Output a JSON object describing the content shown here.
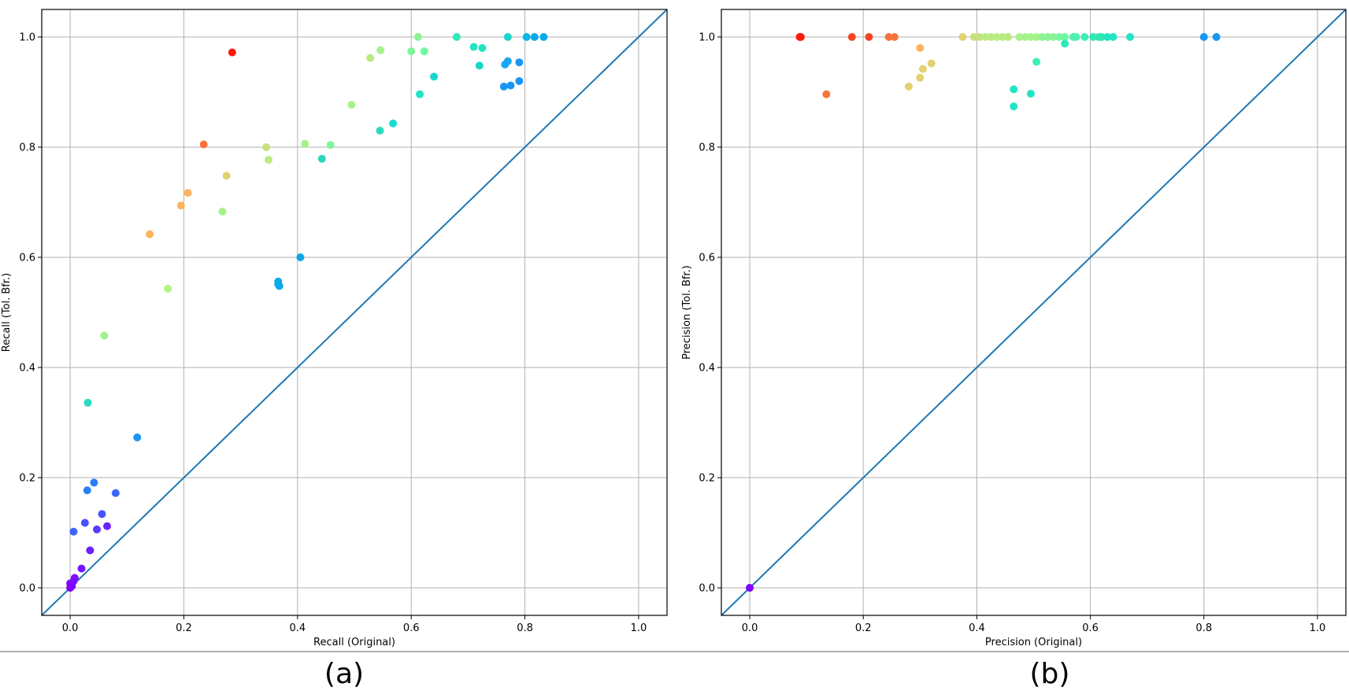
{
  "chart_data": [
    {
      "type": "scatter",
      "panel_label": "(a)",
      "xlabel": "Recall (Original)",
      "ylabel": "Recall (Tol. Bfr.)",
      "xlim": [
        -0.05,
        1.05
      ],
      "ylim": [
        -0.05,
        1.05
      ],
      "xticks": [
        "0.0",
        "0.2",
        "0.4",
        "0.6",
        "0.8",
        "1.0"
      ],
      "yticks": [
        "0.0",
        "0.2",
        "0.4",
        "0.6",
        "0.8",
        "1.0"
      ],
      "grid": true,
      "reference_line": "y = x",
      "line_color": "#1f77b4",
      "colormap": "rainbow",
      "points": [
        {
          "x": 0.0,
          "y": 0.0,
          "c": "#8000ff"
        },
        {
          "x": 0.0,
          "y": 0.008,
          "c": "#8a05ff"
        },
        {
          "x": 0.003,
          "y": 0.003,
          "c": "#8000ff"
        },
        {
          "x": 0.006,
          "y": 0.012,
          "c": "#7a10ff"
        },
        {
          "x": 0.008,
          "y": 0.018,
          "c": "#7a10ff"
        },
        {
          "x": 0.02,
          "y": 0.035,
          "c": "#7316ff"
        },
        {
          "x": 0.035,
          "y": 0.068,
          "c": "#6a22ff"
        },
        {
          "x": 0.065,
          "y": 0.112,
          "c": "#6a22ff"
        },
        {
          "x": 0.047,
          "y": 0.106,
          "c": "#5a3aff"
        },
        {
          "x": 0.026,
          "y": 0.118,
          "c": "#4a52fe"
        },
        {
          "x": 0.056,
          "y": 0.134,
          "c": "#4a52fe"
        },
        {
          "x": 0.006,
          "y": 0.102,
          "c": "#3a66fb"
        },
        {
          "x": 0.03,
          "y": 0.177,
          "c": "#2a7ff7"
        },
        {
          "x": 0.042,
          "y": 0.191,
          "c": "#2a7ff7"
        },
        {
          "x": 0.08,
          "y": 0.172,
          "c": "#3a66fb"
        },
        {
          "x": 0.118,
          "y": 0.273,
          "c": "#1996f2"
        },
        {
          "x": 0.031,
          "y": 0.336,
          "c": "#2adcbe"
        },
        {
          "x": 0.06,
          "y": 0.458,
          "c": "#a0f28c"
        },
        {
          "x": 0.172,
          "y": 0.543,
          "c": "#b0f482"
        },
        {
          "x": 0.14,
          "y": 0.642,
          "c": "#ffb360"
        },
        {
          "x": 0.195,
          "y": 0.694,
          "c": "#ffb360"
        },
        {
          "x": 0.207,
          "y": 0.717,
          "c": "#ffb360"
        },
        {
          "x": 0.235,
          "y": 0.805,
          "c": "#f8733c"
        },
        {
          "x": 0.268,
          "y": 0.683,
          "c": "#a6f28a"
        },
        {
          "x": 0.275,
          "y": 0.748,
          "c": "#e4d070"
        },
        {
          "x": 0.285,
          "y": 0.972,
          "c": "#ff1a0d"
        },
        {
          "x": 0.345,
          "y": 0.8,
          "c": "#c8e07a"
        },
        {
          "x": 0.349,
          "y": 0.777,
          "c": "#b8ec80"
        },
        {
          "x": 0.413,
          "y": 0.806,
          "c": "#a6f28a"
        },
        {
          "x": 0.458,
          "y": 0.804,
          "c": "#7cf69c"
        },
        {
          "x": 0.443,
          "y": 0.779,
          "c": "#2ad8bc"
        },
        {
          "x": 0.405,
          "y": 0.6,
          "c": "#0aa6ea"
        },
        {
          "x": 0.366,
          "y": 0.556,
          "c": "#0aaaea"
        },
        {
          "x": 0.366,
          "y": 0.551,
          "c": "#0aaaea"
        },
        {
          "x": 0.368,
          "y": 0.548,
          "c": "#0aaaea"
        },
        {
          "x": 0.495,
          "y": 0.877,
          "c": "#a6f28a"
        },
        {
          "x": 0.528,
          "y": 0.962,
          "c": "#b8ec80"
        },
        {
          "x": 0.546,
          "y": 0.976,
          "c": "#a6f28a"
        },
        {
          "x": 0.545,
          "y": 0.83,
          "c": "#2adcbe"
        },
        {
          "x": 0.568,
          "y": 0.843,
          "c": "#1adccc"
        },
        {
          "x": 0.6,
          "y": 0.974,
          "c": "#7cf69c"
        },
        {
          "x": 0.612,
          "y": 1.0,
          "c": "#8af494"
        },
        {
          "x": 0.623,
          "y": 0.974,
          "c": "#6ef8a2"
        },
        {
          "x": 0.615,
          "y": 0.896,
          "c": "#20e4c4"
        },
        {
          "x": 0.64,
          "y": 0.928,
          "c": "#1ad4cc"
        },
        {
          "x": 0.68,
          "y": 1.0,
          "c": "#30e8b4"
        },
        {
          "x": 0.71,
          "y": 0.982,
          "c": "#20e4c4"
        },
        {
          "x": 0.725,
          "y": 0.98,
          "c": "#20e4c4"
        },
        {
          "x": 0.72,
          "y": 0.948,
          "c": "#1ad4cc"
        },
        {
          "x": 0.77,
          "y": 1.0,
          "c": "#1ad4cc"
        },
        {
          "x": 0.765,
          "y": 0.95,
          "c": "#1aa6f0"
        },
        {
          "x": 0.77,
          "y": 0.956,
          "c": "#1aa6f0"
        },
        {
          "x": 0.79,
          "y": 0.954,
          "c": "#1996f2"
        },
        {
          "x": 0.763,
          "y": 0.91,
          "c": "#1996f2"
        },
        {
          "x": 0.775,
          "y": 0.912,
          "c": "#1996f2"
        },
        {
          "x": 0.79,
          "y": 0.92,
          "c": "#1996f2"
        },
        {
          "x": 0.803,
          "y": 1.0,
          "c": "#0ab6e6"
        },
        {
          "x": 0.817,
          "y": 1.0,
          "c": "#0aaaea"
        },
        {
          "x": 0.833,
          "y": 1.0,
          "c": "#0aaaea"
        }
      ]
    },
    {
      "type": "scatter",
      "panel_label": "(b)",
      "xlabel": "Precision (Original)",
      "ylabel": "Precision (Tol. Bfr.)",
      "xlim": [
        -0.05,
        1.05
      ],
      "ylim": [
        -0.05,
        1.05
      ],
      "xticks": [
        "0.0",
        "0.2",
        "0.4",
        "0.6",
        "0.8",
        "1.0"
      ],
      "yticks": [
        "0.0",
        "0.2",
        "0.4",
        "0.6",
        "0.8",
        "1.0"
      ],
      "grid": true,
      "reference_line": "y = x",
      "line_color": "#1f77b4",
      "colormap": "rainbow",
      "points": [
        {
          "x": 0.0,
          "y": 0.0,
          "c": "#8000ff"
        },
        {
          "x": 0.088,
          "y": 1.0,
          "c": "#ff1a0d"
        },
        {
          "x": 0.09,
          "y": 1.0,
          "c": "#ff1a0d"
        },
        {
          "x": 0.18,
          "y": 1.0,
          "c": "#f84424"
        },
        {
          "x": 0.21,
          "y": 1.0,
          "c": "#f84424"
        },
        {
          "x": 0.245,
          "y": 1.0,
          "c": "#f8733c"
        },
        {
          "x": 0.255,
          "y": 1.0,
          "c": "#f8733c"
        },
        {
          "x": 0.135,
          "y": 0.896,
          "c": "#f8733c"
        },
        {
          "x": 0.3,
          "y": 0.98,
          "c": "#ffb360"
        },
        {
          "x": 0.32,
          "y": 0.952,
          "c": "#e4d070"
        },
        {
          "x": 0.305,
          "y": 0.942,
          "c": "#e4d070"
        },
        {
          "x": 0.3,
          "y": 0.926,
          "c": "#e4d070"
        },
        {
          "x": 0.28,
          "y": 0.91,
          "c": "#e4d070"
        },
        {
          "x": 0.375,
          "y": 1.0,
          "c": "#e4d070"
        },
        {
          "x": 0.395,
          "y": 1.0,
          "c": "#c8e07a"
        },
        {
          "x": 0.405,
          "y": 1.0,
          "c": "#c8e07a"
        },
        {
          "x": 0.415,
          "y": 1.0,
          "c": "#b8ec80"
        },
        {
          "x": 0.425,
          "y": 1.0,
          "c": "#b8ec80"
        },
        {
          "x": 0.435,
          "y": 1.0,
          "c": "#b8ec80"
        },
        {
          "x": 0.445,
          "y": 1.0,
          "c": "#b8ec80"
        },
        {
          "x": 0.455,
          "y": 1.0,
          "c": "#b8ec80"
        },
        {
          "x": 0.475,
          "y": 1.0,
          "c": "#a6f28a"
        },
        {
          "x": 0.485,
          "y": 1.0,
          "c": "#a6f28a"
        },
        {
          "x": 0.495,
          "y": 1.0,
          "c": "#a6f28a"
        },
        {
          "x": 0.505,
          "y": 1.0,
          "c": "#a6f28a"
        },
        {
          "x": 0.515,
          "y": 1.0,
          "c": "#8af494"
        },
        {
          "x": 0.525,
          "y": 1.0,
          "c": "#8af494"
        },
        {
          "x": 0.535,
          "y": 1.0,
          "c": "#8af494"
        },
        {
          "x": 0.545,
          "y": 1.0,
          "c": "#7cf69c"
        },
        {
          "x": 0.555,
          "y": 1.0,
          "c": "#6ef8a2"
        },
        {
          "x": 0.57,
          "y": 1.0,
          "c": "#50f0b0"
        },
        {
          "x": 0.575,
          "y": 1.0,
          "c": "#50f0b0"
        },
        {
          "x": 0.59,
          "y": 1.0,
          "c": "#40ecb8"
        },
        {
          "x": 0.605,
          "y": 1.0,
          "c": "#30e8b4"
        },
        {
          "x": 0.615,
          "y": 1.0,
          "c": "#30e8b4"
        },
        {
          "x": 0.62,
          "y": 1.0,
          "c": "#30e8b4"
        },
        {
          "x": 0.63,
          "y": 1.0,
          "c": "#20e4c4"
        },
        {
          "x": 0.64,
          "y": 1.0,
          "c": "#20e4c4"
        },
        {
          "x": 0.67,
          "y": 1.0,
          "c": "#20e4c4"
        },
        {
          "x": 0.505,
          "y": 0.955,
          "c": "#40ecb8"
        },
        {
          "x": 0.555,
          "y": 0.988,
          "c": "#30e8b4"
        },
        {
          "x": 0.465,
          "y": 0.905,
          "c": "#20e4c4"
        },
        {
          "x": 0.495,
          "y": 0.897,
          "c": "#20e4c4"
        },
        {
          "x": 0.465,
          "y": 0.874,
          "c": "#20e4c4"
        },
        {
          "x": 0.8,
          "y": 1.0,
          "c": "#1996f2"
        },
        {
          "x": 0.822,
          "y": 1.0,
          "c": "#1996f2"
        }
      ]
    }
  ]
}
